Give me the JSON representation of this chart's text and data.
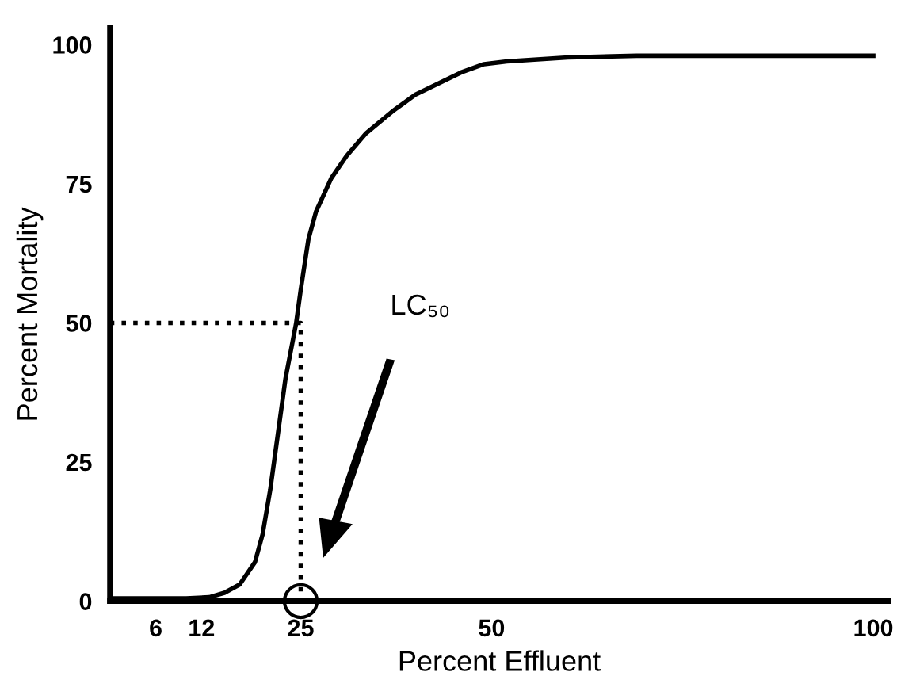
{
  "chart_data": {
    "type": "line",
    "xlabel": "Percent Effluent",
    "ylabel": "Percent Mortality",
    "xlim": [
      0,
      102
    ],
    "ylim": [
      0,
      103
    ],
    "xticks": [
      6,
      12,
      25,
      50,
      100
    ],
    "yticks": [
      0,
      25,
      50,
      75,
      100
    ],
    "grid": false,
    "legend": false,
    "series": [
      {
        "color": "#000000",
        "x": [
          0,
          5,
          10,
          13,
          15,
          17,
          19,
          20,
          21,
          22,
          23,
          24.4,
          25,
          26,
          27,
          29,
          31,
          33.5,
          37,
          40,
          43,
          46,
          49,
          52,
          60,
          69,
          80,
          90,
          100
        ],
        "values": [
          0.5,
          0.5,
          0.5,
          0.7,
          1.5,
          3,
          7,
          12,
          20,
          30,
          40,
          50,
          56,
          65,
          70,
          76,
          80,
          84,
          88,
          91,
          93,
          95,
          96.5,
          97,
          97.7,
          98,
          98,
          98,
          98
        ],
        "line_style": "solid",
        "marker": "none"
      },
      {
        "color": "#000000",
        "x": [
          0,
          25,
          25
        ],
        "values": [
          50,
          50,
          0
        ],
        "line_style": "dotted",
        "marker": "none"
      },
      {
        "type": "scatter",
        "color": "#000000",
        "x": [
          25
        ],
        "values": [
          0
        ],
        "marker": "circle"
      }
    ],
    "annotations": [
      "LC₅₀"
    ]
  }
}
